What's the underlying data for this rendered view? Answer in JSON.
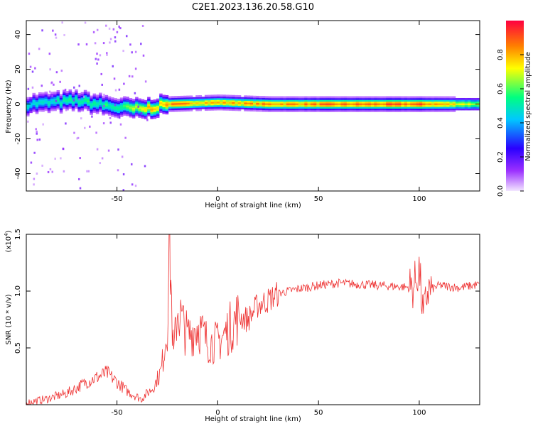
{
  "title": "C2E1.2023.136.20.58.G10",
  "chart_data": [
    {
      "type": "heatmap",
      "xlabel": "Height of straight line (km)",
      "ylabel": "Frequency (Hz)",
      "xlim": [
        -95,
        130
      ],
      "ylim": [
        -50,
        48
      ],
      "xticks": [
        -50,
        0,
        50,
        100
      ],
      "yticks": [
        -40,
        -20,
        0,
        20,
        40
      ],
      "colorbar": {
        "label": "Normalized spectral amplitude",
        "range": [
          0.0,
          1.0
        ],
        "ticks": [
          "0.0",
          "0.2",
          "0.4",
          "0.6",
          "0.8"
        ],
        "colormap": [
          "#f3e6ff",
          "#9b30ff",
          "#2a00ff",
          "#00c8ff",
          "#00ff80",
          "#ffff00",
          "#ff8000",
          "#ff0040"
        ]
      },
      "ridge": {
        "center_frequency_hz": 0,
        "description_points": [
          {
            "x": -95,
            "freq": 0,
            "amp": 0.5
          },
          {
            "x": -70,
            "freq": 2,
            "amp": 0.6
          },
          {
            "x": -50,
            "freq": -2,
            "amp": 0.6
          },
          {
            "x": -38,
            "freq": -3,
            "amp": 0.8
          },
          {
            "x": -25,
            "freq": 0,
            "amp": 0.9
          },
          {
            "x": 0,
            "freq": 1,
            "amp": 0.85
          },
          {
            "x": 25,
            "freq": 0,
            "amp": 0.9
          },
          {
            "x": 100,
            "freq": 0,
            "amp": 0.95
          },
          {
            "x": 130,
            "freq": 0,
            "amp": 0.7
          }
        ]
      }
    },
    {
      "type": "line",
      "xlabel": "Height of straight line (km)",
      "ylabel": "SNR (10 * v/v)",
      "scale_label": "(x10^4)",
      "xlim": [
        -95,
        130
      ],
      "ylim": [
        0,
        1.5
      ],
      "xticks": [
        -50,
        0,
        50,
        100
      ],
      "yticks": [
        "0.5",
        "1.0",
        "1.5"
      ],
      "series": [
        {
          "color": "#ee3333",
          "x": [
            -95,
            -85,
            -75,
            -65,
            -55,
            -45,
            -38,
            -32,
            -28,
            -25,
            -24,
            -22,
            -20,
            -15,
            -10,
            -5,
            0,
            5,
            10,
            15,
            20,
            25,
            30,
            40,
            50,
            60,
            70,
            80,
            90,
            97,
            100,
            102,
            104,
            110,
            120,
            130
          ],
          "y": [
            0.02,
            0.05,
            0.1,
            0.2,
            0.28,
            0.12,
            0.05,
            0.15,
            0.3,
            0.7,
            1.5,
            0.4,
            0.85,
            0.6,
            0.7,
            0.55,
            0.55,
            0.65,
            0.78,
            0.75,
            0.88,
            0.92,
            0.98,
            1.02,
            1.05,
            1.07,
            1.06,
            1.05,
            1.04,
            1.03,
            1.2,
            0.75,
            1.0,
            1.05,
            1.03,
            1.06
          ]
        }
      ]
    }
  ]
}
